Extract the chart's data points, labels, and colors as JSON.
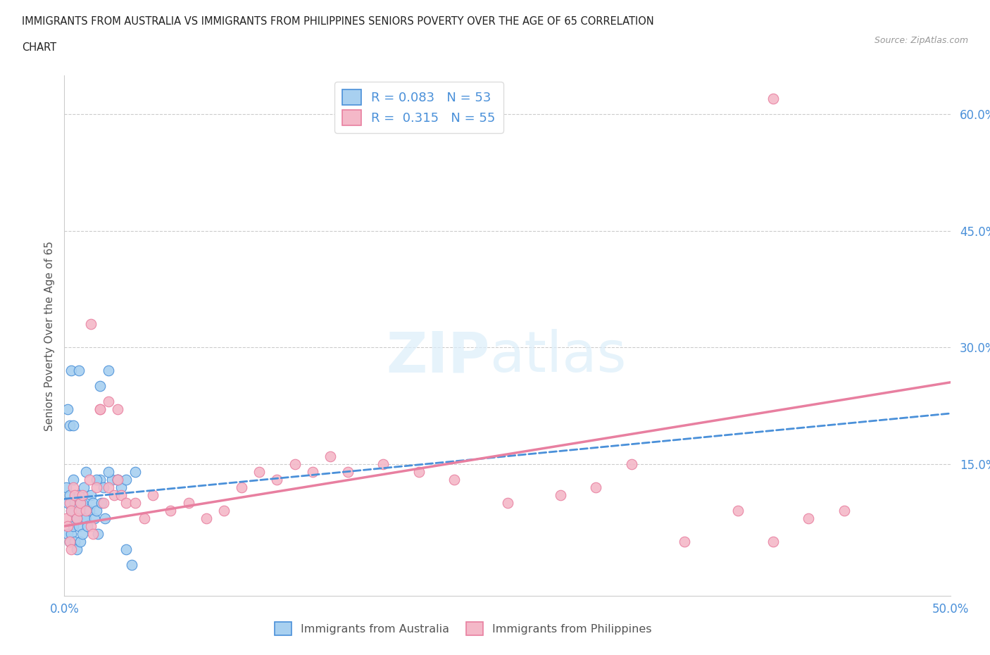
{
  "title_line1": "IMMIGRANTS FROM AUSTRALIA VS IMMIGRANTS FROM PHILIPPINES SENIORS POVERTY OVER THE AGE OF 65 CORRELATION",
  "title_line2": "CHART",
  "source": "Source: ZipAtlas.com",
  "ylabel": "Seniors Poverty Over the Age of 65",
  "xlim": [
    0.0,
    0.5
  ],
  "ylim": [
    -0.02,
    0.65
  ],
  "yticks": [
    0.0,
    0.15,
    0.3,
    0.45,
    0.6
  ],
  "ytick_labels": [
    "",
    "15.0%",
    "30.0%",
    "45.0%",
    "60.0%"
  ],
  "xticks": [
    0.0,
    0.1,
    0.2,
    0.3,
    0.4,
    0.5
  ],
  "xtick_labels": [
    "0.0%",
    "",
    "",
    "",
    "",
    "50.0%"
  ],
  "color_australia": "#a8d0f0",
  "color_philippines": "#f4b8c8",
  "line_color_australia": "#4a90d9",
  "line_color_philippines": "#e87fa0",
  "background_color": "#ffffff",
  "aus_line_x": [
    0.0,
    0.5
  ],
  "aus_line_y": [
    0.105,
    0.215
  ],
  "phi_line_x": [
    0.0,
    0.5
  ],
  "phi_line_y": [
    0.07,
    0.255
  ],
  "australia_x": [
    0.001,
    0.002,
    0.002,
    0.003,
    0.003,
    0.004,
    0.004,
    0.005,
    0.005,
    0.006,
    0.006,
    0.007,
    0.007,
    0.008,
    0.008,
    0.009,
    0.009,
    0.01,
    0.01,
    0.011,
    0.011,
    0.012,
    0.013,
    0.014,
    0.015,
    0.016,
    0.017,
    0.018,
    0.019,
    0.02,
    0.021,
    0.022,
    0.023,
    0.025,
    0.027,
    0.03,
    0.032,
    0.035,
    0.038,
    0.04,
    0.002,
    0.003,
    0.005,
    0.007,
    0.009,
    0.012,
    0.018,
    0.025,
    0.03,
    0.035,
    0.004,
    0.008,
    0.02
  ],
  "australia_y": [
    0.12,
    0.1,
    0.06,
    0.11,
    0.05,
    0.09,
    0.06,
    0.13,
    0.07,
    0.1,
    0.05,
    0.08,
    0.04,
    0.11,
    0.07,
    0.09,
    0.05,
    0.1,
    0.06,
    0.12,
    0.08,
    0.08,
    0.07,
    0.09,
    0.11,
    0.1,
    0.08,
    0.09,
    0.06,
    0.13,
    0.1,
    0.12,
    0.08,
    0.27,
    0.13,
    0.13,
    0.12,
    0.04,
    0.02,
    0.14,
    0.22,
    0.2,
    0.2,
    0.08,
    0.1,
    0.14,
    0.13,
    0.14,
    0.13,
    0.13,
    0.27,
    0.27,
    0.25
  ],
  "philippines_x": [
    0.001,
    0.002,
    0.003,
    0.003,
    0.004,
    0.004,
    0.005,
    0.006,
    0.007,
    0.008,
    0.009,
    0.01,
    0.012,
    0.014,
    0.015,
    0.016,
    0.018,
    0.02,
    0.022,
    0.025,
    0.028,
    0.03,
    0.032,
    0.035,
    0.04,
    0.045,
    0.05,
    0.06,
    0.07,
    0.08,
    0.09,
    0.1,
    0.11,
    0.12,
    0.13,
    0.14,
    0.15,
    0.16,
    0.18,
    0.2,
    0.22,
    0.25,
    0.28,
    0.3,
    0.32,
    0.35,
    0.38,
    0.4,
    0.42,
    0.44,
    0.015,
    0.02,
    0.025,
    0.03,
    0.4
  ],
  "philippines_y": [
    0.08,
    0.07,
    0.1,
    0.05,
    0.09,
    0.04,
    0.12,
    0.11,
    0.08,
    0.09,
    0.1,
    0.11,
    0.09,
    0.13,
    0.07,
    0.06,
    0.12,
    0.22,
    0.1,
    0.12,
    0.11,
    0.13,
    0.11,
    0.1,
    0.1,
    0.08,
    0.11,
    0.09,
    0.1,
    0.08,
    0.09,
    0.12,
    0.14,
    0.13,
    0.15,
    0.14,
    0.16,
    0.14,
    0.15,
    0.14,
    0.13,
    0.1,
    0.11,
    0.12,
    0.15,
    0.05,
    0.09,
    0.05,
    0.08,
    0.09,
    0.33,
    0.22,
    0.23,
    0.22,
    0.62
  ]
}
